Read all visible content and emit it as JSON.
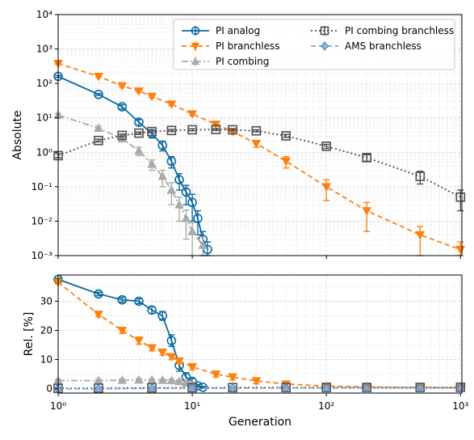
{
  "chart_data": [
    {
      "type": "line",
      "x_scale": "log",
      "y_scale": "log",
      "xlim": [
        1,
        1024
      ],
      "ylim": [
        0.001,
        10000
      ],
      "ylabel": "Absolute",
      "grid": true,
      "legend_placement": "top-right",
      "y_ticks": [
        0.001,
        0.01,
        0.1,
        1,
        10,
        100,
        1000,
        10000
      ],
      "y_tick_labels": [
        "10⁻³",
        "10⁻²",
        "10⁻¹",
        "10⁰",
        "10¹",
        "10²",
        "10³",
        "10⁴"
      ],
      "series": [
        {
          "name": "PI analog",
          "color": "#0a6aa1",
          "marker": "circle",
          "line": "solid",
          "points": [
            [
              1,
              160,
              10
            ],
            [
              2,
              48,
              3
            ],
            [
              3,
              21,
              3
            ],
            [
              4,
              7.5,
              1.5
            ],
            [
              5,
              3.5,
              0.9
            ],
            [
              6,
              1.6,
              0.5
            ],
            [
              7,
              0.55,
              0.2
            ],
            [
              8,
              0.16,
              0.08
            ],
            [
              9,
              0.07,
              0.04
            ],
            [
              10,
              0.035,
              0.025
            ],
            [
              11,
              0.012,
              0.008
            ],
            [
              12,
              0.003,
              0.002
            ],
            [
              13,
              0.0015,
              0.001
            ]
          ]
        },
        {
          "name": "PI branchless",
          "color": "#ff7f0e",
          "marker": "triangle-down",
          "line": "dashed",
          "points": [
            [
              1,
              380,
              20
            ],
            [
              2,
              160,
              10
            ],
            [
              3,
              85,
              6
            ],
            [
              4,
              60,
              4
            ],
            [
              5,
              42,
              3
            ],
            [
              7,
              25,
              2
            ],
            [
              10,
              13,
              1.2
            ],
            [
              15,
              6.5,
              0.8
            ],
            [
              20,
              4,
              0.6
            ],
            [
              30,
              1.8,
              0.4
            ],
            [
              50,
              0.55,
              0.2
            ],
            [
              100,
              0.1,
              0.06
            ],
            [
              200,
              0.02,
              0.015
            ],
            [
              500,
              0.004,
              0.003
            ],
            [
              1000,
              0.0015,
              0.001
            ]
          ]
        },
        {
          "name": "PI combing",
          "color": "#aaaaaa",
          "marker": "triangle-up",
          "line": "dashdot",
          "points": [
            [
              1,
              12,
              1.5
            ],
            [
              2,
              5,
              0.8
            ],
            [
              3,
              2.5,
              0.5
            ],
            [
              4,
              1.1,
              0.3
            ],
            [
              5,
              0.45,
              0.15
            ],
            [
              6,
              0.2,
              0.1
            ],
            [
              7,
              0.08,
              0.05
            ],
            [
              8,
              0.03,
              0.02
            ],
            [
              9,
              0.012,
              0.009
            ],
            [
              10,
              0.005,
              0.004
            ],
            [
              12,
              0.002,
              0.0015
            ]
          ]
        },
        {
          "name": "PI combing branchless",
          "color": "#4d4d4d",
          "marker": "square",
          "line": "dotted",
          "points": [
            [
              1,
              0.8,
              0.1
            ],
            [
              2,
              2.2,
              0.2
            ],
            [
              3,
              3.1,
              0.3
            ],
            [
              4,
              3.6,
              0.3
            ],
            [
              5,
              4,
              0.3
            ],
            [
              7,
              4.3,
              0.3
            ],
            [
              10,
              4.5,
              0.3
            ],
            [
              15,
              4.6,
              0.3
            ],
            [
              20,
              4.5,
              0.3
            ],
            [
              30,
              4.2,
              0.3
            ],
            [
              50,
              3,
              0.3
            ],
            [
              100,
              1.5,
              0.2
            ],
            [
              200,
              0.7,
              0.15
            ],
            [
              500,
              0.2,
              0.08
            ],
            [
              1000,
              0.05,
              0.03
            ]
          ]
        },
        {
          "name": "AMS branchless",
          "color": "#7fa9d6",
          "marker": "diamond",
          "line": "dashed",
          "points": []
        }
      ],
      "legend_columns": 2,
      "legend_order": [
        0,
        3,
        1,
        4,
        2
      ]
    },
    {
      "type": "line",
      "x_scale": "log",
      "y_scale": "linear",
      "xlim": [
        1,
        1024
      ],
      "ylim": [
        -1.5,
        39
      ],
      "xlabel": "Generation",
      "ylabel": "Rel. [%]",
      "grid": true,
      "x_ticks": [
        1,
        10,
        100,
        1000
      ],
      "x_tick_labels": [
        "10⁰",
        "10¹",
        "10²",
        "10³"
      ],
      "y_ticks": [
        0,
        10,
        20,
        30
      ],
      "y_tick_labels": [
        "0",
        "10",
        "20",
        "30"
      ],
      "series": [
        {
          "name": "PI analog",
          "points": [
            [
              1,
              37.5,
              0.4
            ],
            [
              2,
              32.5,
              0.6
            ],
            [
              3,
              30.5,
              0.8
            ],
            [
              4,
              30,
              0.8
            ],
            [
              5,
              27,
              1.2
            ],
            [
              6,
              25,
              1.5
            ],
            [
              7,
              16.5,
              2
            ],
            [
              8,
              8,
              2
            ],
            [
              9,
              4,
              1.5
            ],
            [
              10,
              2.5,
              1
            ],
            [
              11,
              1,
              0.5
            ],
            [
              12,
              0.5,
              0.3
            ]
          ]
        },
        {
          "name": "PI branchless",
          "points": [
            [
              1,
              36.5,
              0.6
            ],
            [
              2,
              25.5,
              0.8
            ],
            [
              3,
              20,
              1
            ],
            [
              4,
              16.5,
              1.2
            ],
            [
              5,
              14,
              1
            ],
            [
              6,
              12.5,
              1
            ],
            [
              7,
              11,
              1
            ],
            [
              8,
              9.5,
              1
            ],
            [
              10,
              7.5,
              1
            ],
            [
              15,
              5,
              1
            ],
            [
              20,
              4,
              1
            ],
            [
              30,
              2.7,
              1
            ],
            [
              50,
              1.6,
              0.8
            ],
            [
              100,
              0.9,
              0.6
            ],
            [
              200,
              0.6,
              0.5
            ],
            [
              500,
              0.4,
              0.4
            ],
            [
              1000,
              0.3,
              0.3
            ]
          ]
        },
        {
          "name": "PI combing",
          "points": [
            [
              1,
              2.8,
              0.4
            ],
            [
              2,
              2.8,
              0.4
            ],
            [
              3,
              2.9,
              0.4
            ],
            [
              4,
              3,
              0.4
            ],
            [
              5,
              3,
              0.4
            ],
            [
              6,
              2.9,
              0.4
            ],
            [
              7,
              2.8,
              0.5
            ],
            [
              8,
              2.5,
              0.5
            ],
            [
              9,
              2,
              0.5
            ],
            [
              10,
              1.5,
              0.5
            ]
          ]
        },
        {
          "name": "PI combing branchless",
          "points": [
            [
              1,
              0.1,
              0.05
            ],
            [
              2,
              0.2,
              0.05
            ],
            [
              5,
              0.3,
              0.05
            ],
            [
              10,
              0.35,
              0.05
            ],
            [
              20,
              0.4,
              0.05
            ],
            [
              50,
              0.4,
              0.05
            ],
            [
              100,
              0.4,
              0.05
            ],
            [
              200,
              0.45,
              0.05
            ],
            [
              500,
              0.45,
              0.05
            ],
            [
              1000,
              0.5,
              0.05
            ]
          ]
        },
        {
          "name": "AMS branchless",
          "points": [
            [
              1,
              0,
              0.3
            ],
            [
              2,
              0,
              0.3
            ],
            [
              5,
              0.1,
              0.3
            ],
            [
              10,
              0.2,
              0.3
            ],
            [
              20,
              0.2,
              0.3
            ],
            [
              50,
              0.3,
              0.3
            ],
            [
              100,
              0.3,
              0.3
            ],
            [
              200,
              0.3,
              0.3
            ],
            [
              500,
              0.3,
              0.3
            ],
            [
              1000,
              0.3,
              0.3
            ]
          ]
        }
      ]
    }
  ]
}
